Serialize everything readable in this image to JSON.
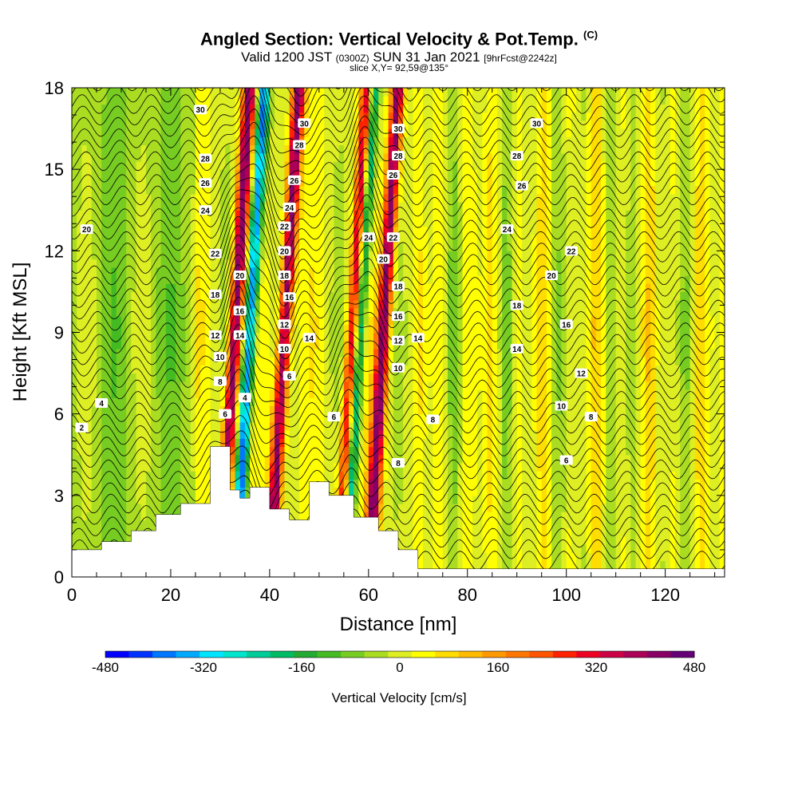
{
  "chart_data": {
    "type": "heatmap",
    "title": "Angled Section: Vertical Velocity & Pot.Temp.",
    "title_mark": "(C)",
    "subtitle_main": "Valid 1200 JST",
    "subtitle_utc": "(0300Z)",
    "subtitle_date": "SUN 31 Jan 2021",
    "subtitle_fcst": "[9hrFcst@2242z]",
    "slice_label": "slice X,Y= 92,59@135°",
    "xlabel": "Distance [nm]",
    "ylabel": "Height [Kft MSL]",
    "xlim": [
      0,
      132
    ],
    "ylim": [
      0,
      18
    ],
    "x_ticks": [
      0,
      20,
      40,
      60,
      80,
      100,
      120
    ],
    "y_ticks": [
      0,
      3,
      6,
      9,
      12,
      15,
      18
    ],
    "grid": false,
    "colorbar": {
      "title": "Vertical Velocity [cm/s]",
      "ticks": [
        -480,
        -320,
        -160,
        0,
        160,
        320,
        480
      ],
      "levels": [
        -480,
        -440,
        -400,
        -360,
        -320,
        -280,
        -240,
        -200,
        -160,
        -120,
        -80,
        -40,
        0,
        40,
        80,
        120,
        160,
        200,
        240,
        280,
        320,
        360,
        400,
        440,
        480
      ],
      "colors": [
        "#0000ff",
        "#0033ff",
        "#0077ff",
        "#00aaff",
        "#00e5ff",
        "#00e5cc",
        "#00cc99",
        "#00bb66",
        "#22aa33",
        "#44bb22",
        "#77cc22",
        "#aadd22",
        "#ddee22",
        "#ffff00",
        "#ffdd00",
        "#ffbb00",
        "#ff9900",
        "#ff7700",
        "#ff5500",
        "#ff2200",
        "#ee0022",
        "#cc0044",
        "#aa0055",
        "#880066",
        "#660077"
      ]
    },
    "updraft_bands_nm": [
      33,
      43,
      57,
      63
    ],
    "downdraft_bands_nm": [
      36,
      58
    ],
    "terrain_nm_kft": [
      [
        0,
        1.0
      ],
      [
        6,
        1.0
      ],
      [
        6,
        1.3
      ],
      [
        12,
        1.3
      ],
      [
        12,
        1.7
      ],
      [
        17,
        1.7
      ],
      [
        17,
        2.3
      ],
      [
        22,
        2.3
      ],
      [
        22,
        2.7
      ],
      [
        28,
        2.7
      ],
      [
        28,
        4.8
      ],
      [
        32,
        4.8
      ],
      [
        32,
        3.2
      ],
      [
        34,
        3.2
      ],
      [
        34,
        2.9
      ],
      [
        36,
        2.9
      ],
      [
        36,
        3.3
      ],
      [
        40,
        3.3
      ],
      [
        40,
        2.5
      ],
      [
        44,
        2.5
      ],
      [
        44,
        2.1
      ],
      [
        48,
        2.1
      ],
      [
        48,
        3.5
      ],
      [
        52,
        3.5
      ],
      [
        52,
        3.0
      ],
      [
        57,
        3.0
      ],
      [
        57,
        2.2
      ],
      [
        62,
        2.2
      ],
      [
        62,
        1.7
      ],
      [
        66,
        1.7
      ],
      [
        66,
        1.0
      ],
      [
        70,
        1.0
      ],
      [
        70,
        0.3
      ],
      [
        132,
        0.3
      ]
    ],
    "contour_labels": [
      {
        "text": "30",
        "x": 26,
        "y": 17.2
      },
      {
        "text": "28",
        "x": 27,
        "y": 15.4
      },
      {
        "text": "26",
        "x": 27,
        "y": 14.5
      },
      {
        "text": "24",
        "x": 27,
        "y": 13.5
      },
      {
        "text": "22",
        "x": 29,
        "y": 11.9
      },
      {
        "text": "20",
        "x": 34,
        "y": 11.1
      },
      {
        "text": "18",
        "x": 29,
        "y": 10.4
      },
      {
        "text": "16",
        "x": 34,
        "y": 9.8
      },
      {
        "text": "14",
        "x": 34,
        "y": 8.9
      },
      {
        "text": "12",
        "x": 29,
        "y": 8.9
      },
      {
        "text": "10",
        "x": 30,
        "y": 8.1
      },
      {
        "text": "8",
        "x": 30,
        "y": 7.2
      },
      {
        "text": "6",
        "x": 31,
        "y": 6.0
      },
      {
        "text": "4",
        "x": 35,
        "y": 6.6
      },
      {
        "text": "20",
        "x": 3,
        "y": 12.8
      },
      {
        "text": "4",
        "x": 6,
        "y": 6.4
      },
      {
        "text": "2",
        "x": 2,
        "y": 5.5
      },
      {
        "text": "30",
        "x": 47,
        "y": 16.7
      },
      {
        "text": "28",
        "x": 46,
        "y": 15.9
      },
      {
        "text": "26",
        "x": 45,
        "y": 14.6
      },
      {
        "text": "24",
        "x": 44,
        "y": 13.6
      },
      {
        "text": "22",
        "x": 43,
        "y": 12.9
      },
      {
        "text": "20",
        "x": 43,
        "y": 12.0
      },
      {
        "text": "18",
        "x": 43,
        "y": 11.1
      },
      {
        "text": "16",
        "x": 44,
        "y": 10.3
      },
      {
        "text": "12",
        "x": 43,
        "y": 9.3
      },
      {
        "text": "10",
        "x": 43,
        "y": 8.4
      },
      {
        "text": "6",
        "x": 44,
        "y": 7.4
      },
      {
        "text": "14",
        "x": 48,
        "y": 8.8
      },
      {
        "text": "6",
        "x": 53,
        "y": 5.9
      },
      {
        "text": "30",
        "x": 66,
        "y": 16.5
      },
      {
        "text": "28",
        "x": 66,
        "y": 15.5
      },
      {
        "text": "26",
        "x": 65,
        "y": 14.8
      },
      {
        "text": "24",
        "x": 60,
        "y": 12.5
      },
      {
        "text": "22",
        "x": 65,
        "y": 12.5
      },
      {
        "text": "20",
        "x": 63,
        "y": 11.7
      },
      {
        "text": "18",
        "x": 66,
        "y": 10.7
      },
      {
        "text": "16",
        "x": 66,
        "y": 9.6
      },
      {
        "text": "12",
        "x": 66,
        "y": 8.7
      },
      {
        "text": "10",
        "x": 66,
        "y": 7.7
      },
      {
        "text": "14",
        "x": 70,
        "y": 8.8
      },
      {
        "text": "8",
        "x": 73,
        "y": 5.8
      },
      {
        "text": "8",
        "x": 66,
        "y": 4.2
      },
      {
        "text": "30",
        "x": 94,
        "y": 16.7
      },
      {
        "text": "28",
        "x": 90,
        "y": 15.5
      },
      {
        "text": "26",
        "x": 91,
        "y": 14.4
      },
      {
        "text": "24",
        "x": 88,
        "y": 12.8
      },
      {
        "text": "22",
        "x": 101,
        "y": 12.0
      },
      {
        "text": "20",
        "x": 97,
        "y": 11.1
      },
      {
        "text": "18",
        "x": 90,
        "y": 10.0
      },
      {
        "text": "16",
        "x": 100,
        "y": 9.3
      },
      {
        "text": "14",
        "x": 90,
        "y": 8.4
      },
      {
        "text": "12",
        "x": 103,
        "y": 7.5
      },
      {
        "text": "10",
        "x": 99,
        "y": 6.3
      },
      {
        "text": "8",
        "x": 105,
        "y": 5.9
      },
      {
        "text": "6",
        "x": 100,
        "y": 4.3
      }
    ]
  }
}
